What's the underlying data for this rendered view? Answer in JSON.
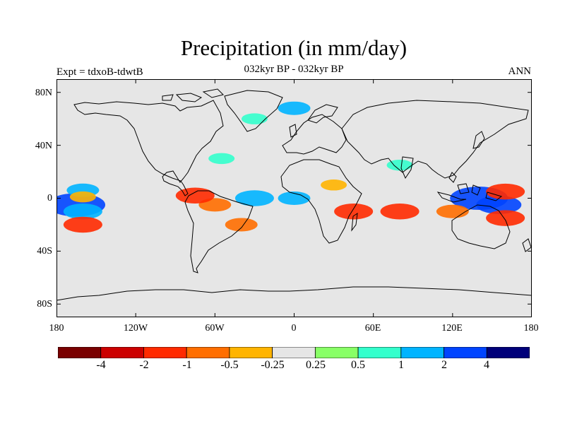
{
  "header": {
    "title": "Precipitation (in mm/day)",
    "subtitle": "032kyr BP - 032kyr BP",
    "left_string": "Expt = tdxoB-tdwtB",
    "right_string": "ANN"
  },
  "axes": {
    "y_ticks": [
      "80N",
      "40N",
      "0",
      "40S",
      "80S"
    ],
    "y_values": [
      80,
      40,
      0,
      -40,
      -80
    ],
    "x_ticks": [
      "180",
      "120W",
      "60W",
      "0",
      "60E",
      "120E",
      "180"
    ],
    "x_values": [
      -180,
      -120,
      -60,
      0,
      60,
      120,
      180
    ],
    "lon_range": [
      -180,
      180
    ],
    "lat_range": [
      -90,
      90
    ]
  },
  "colorbar": {
    "labels": [
      "-4",
      "-2",
      "-1",
      "-0.5",
      "-0.25",
      "0.25",
      "0.5",
      "1",
      "2",
      "4"
    ],
    "colors": [
      "#7a0000",
      "#cc0000",
      "#ff2a00",
      "#ff6e00",
      "#ffb400",
      "#e6e6e6",
      "#88ff66",
      "#33ffcc",
      "#00b4ff",
      "#0044ff",
      "#00007a"
    ]
  },
  "chart_data": {
    "type": "map",
    "title": "Precipitation (in mm/day)",
    "subtitle": "032kyr BP - 032kyr BP",
    "experiment": "Expt = tdxoB-tdwtB",
    "season": "ANN",
    "lon_range": [
      -180,
      180
    ],
    "lat_range": [
      -90,
      90
    ],
    "levels": [
      -4,
      -2,
      -1,
      -0.5,
      -0.25,
      0.25,
      0.5,
      1,
      2,
      4
    ],
    "anomaly_regions": [
      {
        "lon": -165,
        "lat": -5,
        "value": 3
      },
      {
        "lon": -160,
        "lat": -10,
        "value": 1.5
      },
      {
        "lon": -160,
        "lat": -20,
        "value": -1.5
      },
      {
        "lon": -160,
        "lat": 6,
        "value": 1
      },
      {
        "lon": -160,
        "lat": 1,
        "value": -0.5
      },
      {
        "lon": -60,
        "lat": -5,
        "value": -1
      },
      {
        "lon": -75,
        "lat": 2,
        "value": -1.5
      },
      {
        "lon": -40,
        "lat": -20,
        "value": -1
      },
      {
        "lon": -30,
        "lat": 0,
        "value": 1.5
      },
      {
        "lon": 0,
        "lat": 0,
        "value": 1
      },
      {
        "lon": 30,
        "lat": 10,
        "value": -0.5
      },
      {
        "lon": 45,
        "lat": -10,
        "value": -1.5
      },
      {
        "lon": 80,
        "lat": -10,
        "value": -1.5
      },
      {
        "lon": 140,
        "lat": 0,
        "value": 3
      },
      {
        "lon": 155,
        "lat": -5,
        "value": 2
      },
      {
        "lon": 160,
        "lat": 5,
        "value": -1.5
      },
      {
        "lon": 160,
        "lat": -15,
        "value": -1.5
      },
      {
        "lon": 120,
        "lat": -10,
        "value": -1
      },
      {
        "lon": -30,
        "lat": 60,
        "value": 0.5
      },
      {
        "lon": -55,
        "lat": 30,
        "value": 0.5
      },
      {
        "lon": 80,
        "lat": 25,
        "value": 0.5
      },
      {
        "lon": 0,
        "lat": 68,
        "value": 1
      }
    ]
  }
}
